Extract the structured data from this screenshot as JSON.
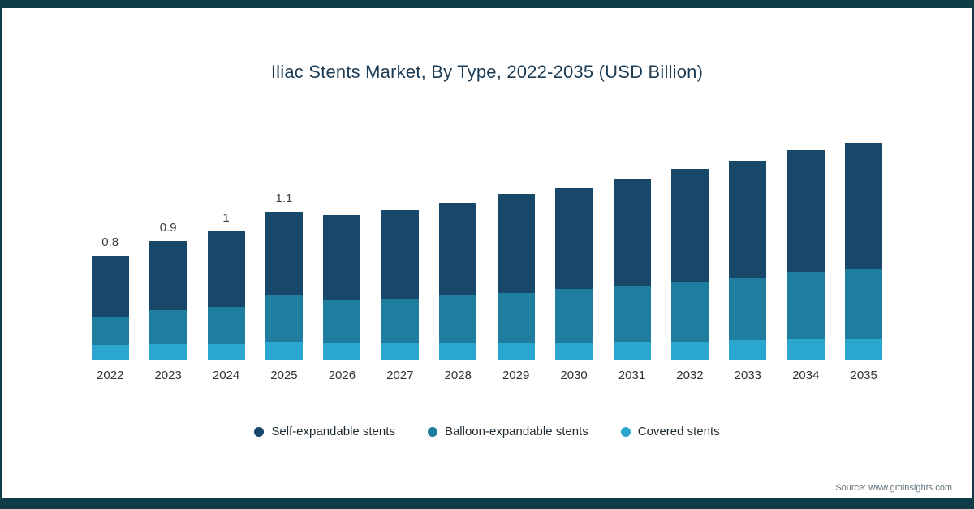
{
  "footer": {
    "source": "Source: www.gminsights.com"
  },
  "chart_data": {
    "type": "bar",
    "stacked": true,
    "title": "Iliac Stents Market, By Type, 2022-2035 (USD Billion)",
    "unit": "USD Billion",
    "xlabel": "",
    "ylabel": "",
    "ylim": [
      0,
      1.8
    ],
    "grid": false,
    "legend_position": "bottom",
    "categories": [
      "2022",
      "2023",
      "2024",
      "2025",
      "2026",
      "2027",
      "2028",
      "2029",
      "2030",
      "2031",
      "2032",
      "2033",
      "2034",
      "2035"
    ],
    "series": [
      {
        "key": "self-expandable-stents",
        "name": "Self-expandable stents",
        "color": "#17486a",
        "values": [
          0.47,
          0.53,
          0.58,
          0.64,
          0.65,
          0.68,
          0.71,
          0.76,
          0.78,
          0.82,
          0.87,
          0.9,
          0.94,
          0.97
        ]
      },
      {
        "key": "balloon-expandable-stents",
        "name": "Balloon-expandable stents",
        "color": "#1f7ea0",
        "values": [
          0.22,
          0.26,
          0.29,
          0.36,
          0.33,
          0.34,
          0.36,
          0.38,
          0.41,
          0.43,
          0.46,
          0.48,
          0.51,
          0.54
        ]
      },
      {
        "key": "covered-stents",
        "name": "Covered stents",
        "color": "#2ba7cf",
        "values": [
          0.11,
          0.12,
          0.12,
          0.14,
          0.13,
          0.13,
          0.13,
          0.13,
          0.13,
          0.14,
          0.14,
          0.15,
          0.16,
          0.16
        ]
      }
    ],
    "totals_labeled": {
      "2022": "0.8",
      "2023": "0.9",
      "2024": "1",
      "2025": "1.1"
    },
    "estimated_totals": [
      0.8,
      0.91,
      0.99,
      1.14,
      1.11,
      1.15,
      1.2,
      1.27,
      1.32,
      1.39,
      1.47,
      1.53,
      1.61,
      1.67
    ]
  }
}
